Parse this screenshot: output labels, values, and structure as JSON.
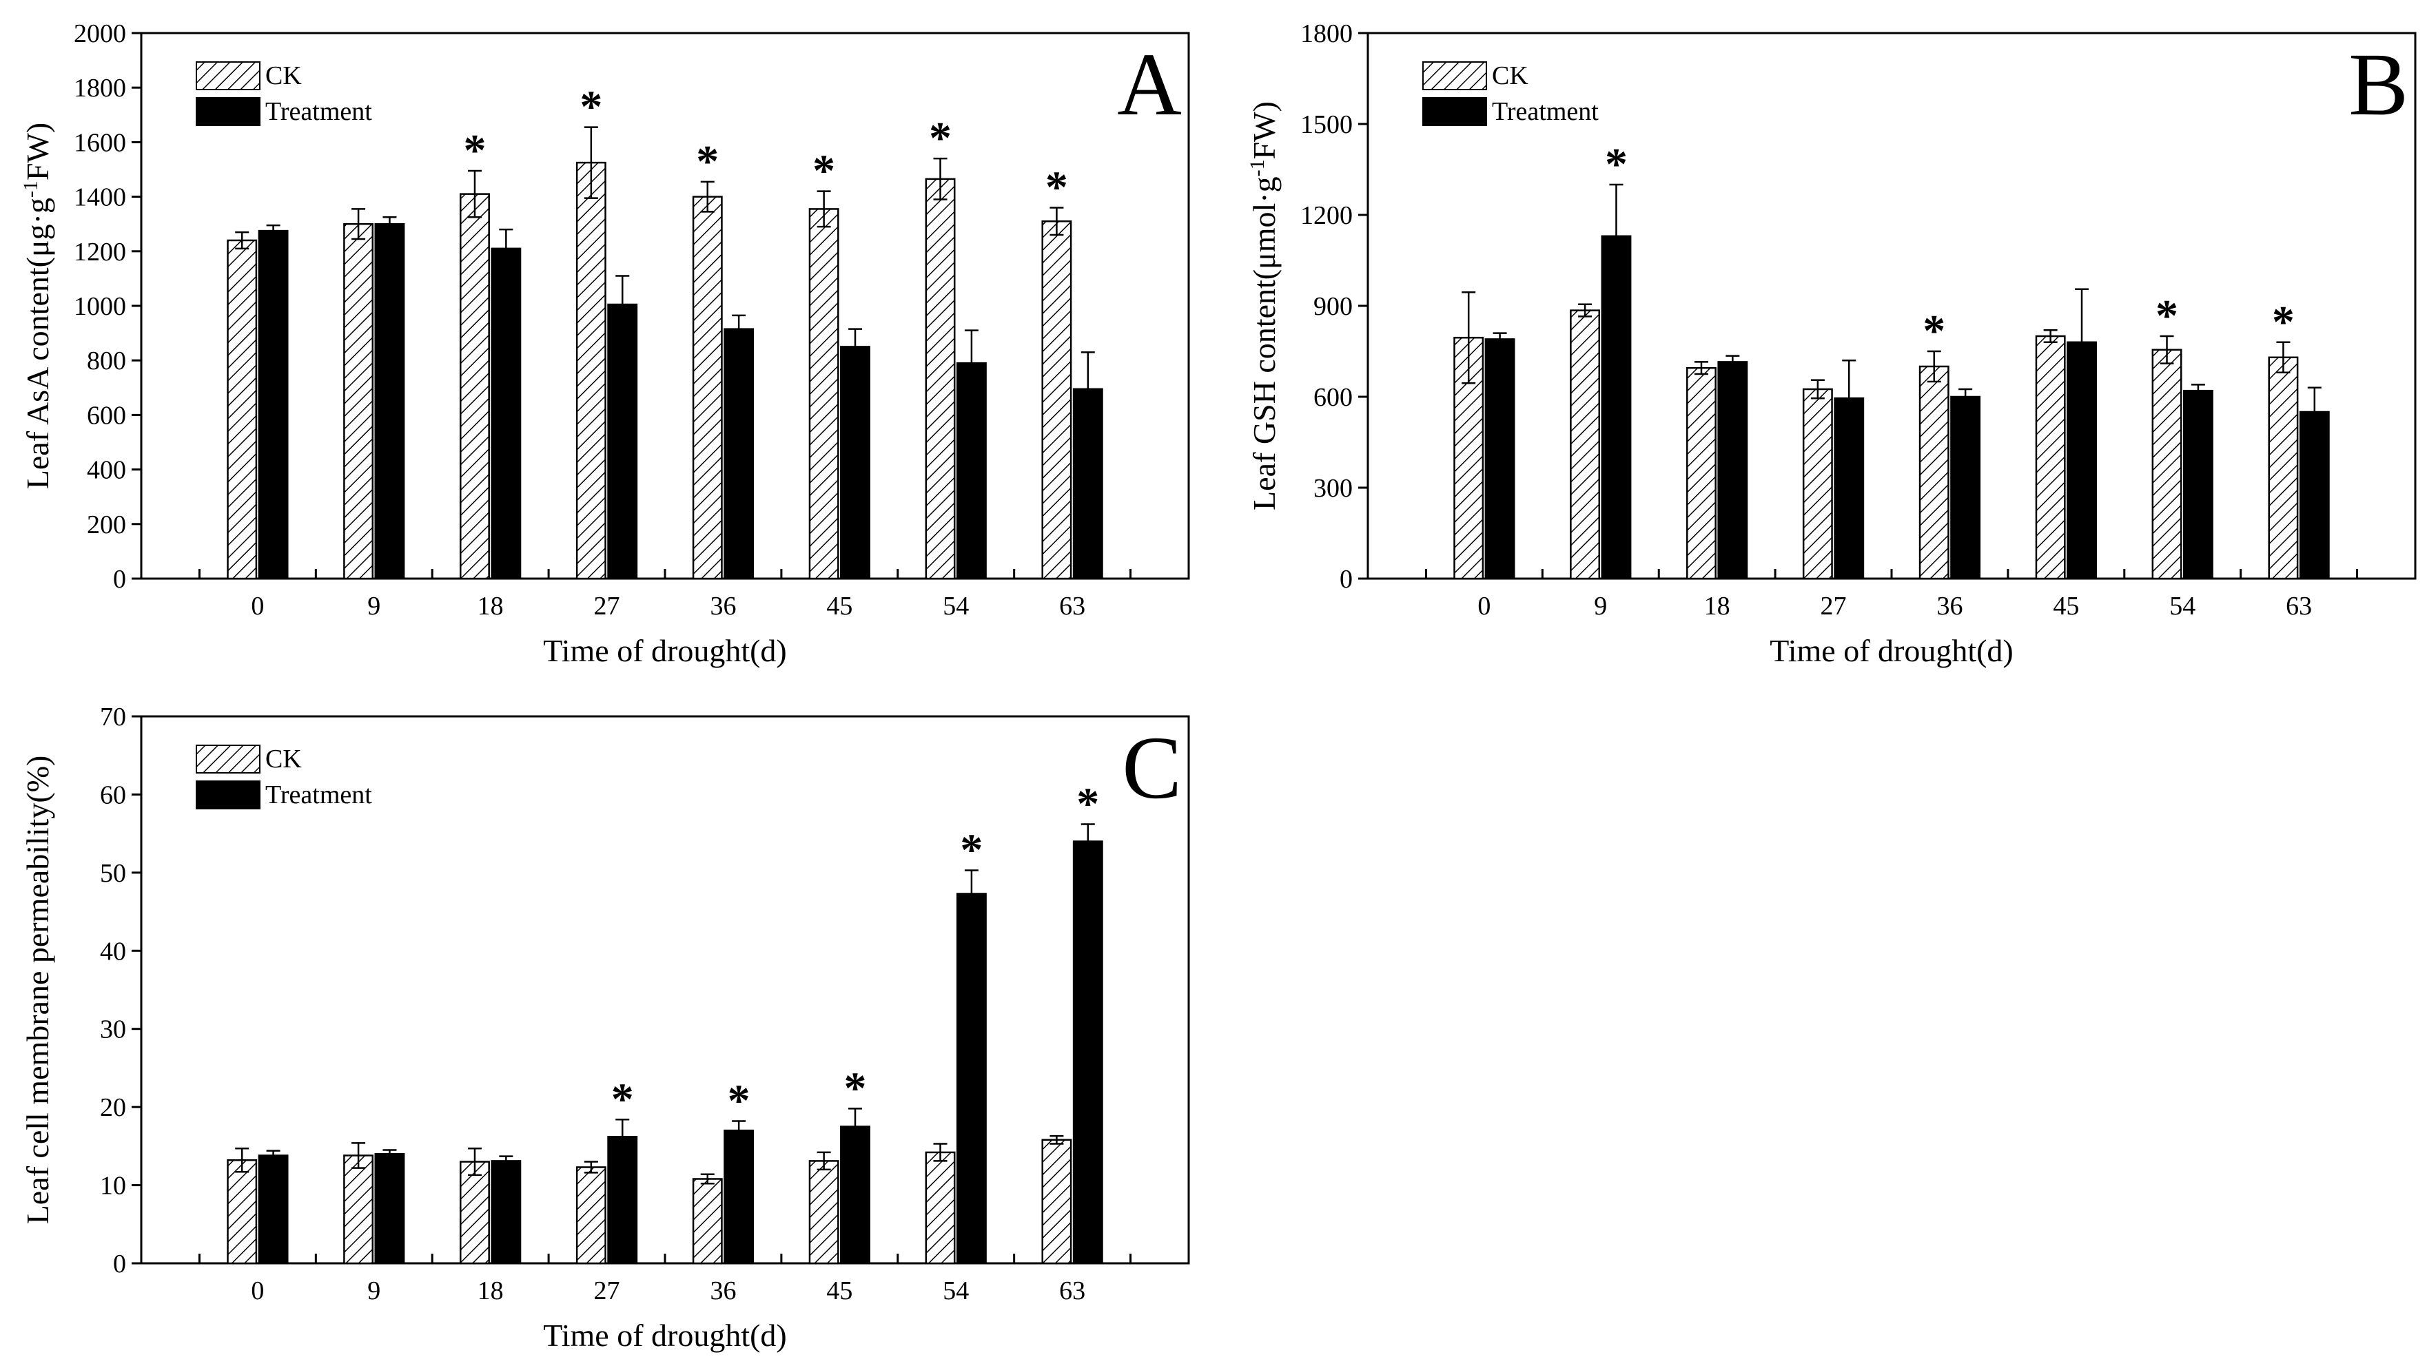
{
  "chart_data": [
    {
      "panel": "A",
      "type": "bar",
      "categories": [
        "0",
        "9",
        "18",
        "27",
        "36",
        "45",
        "54",
        "63"
      ],
      "xlabel": "Time of drought(d)",
      "ylabel_parts": {
        "pre": "Leaf AsA content(μg·g",
        "sup": "-1",
        "post": "FW)"
      },
      "ylim": [
        0,
        2000
      ],
      "yticks": [
        "0",
        "200",
        "400",
        "600",
        "800",
        "1000",
        "1200",
        "1400",
        "1600",
        "1800",
        "2000"
      ],
      "legend": [
        "CK",
        "Treatment"
      ],
      "legend_position": "top-left",
      "series": [
        {
          "name": "CK",
          "values": [
            1240,
            1300,
            1410,
            1525,
            1400,
            1355,
            1465,
            1310
          ],
          "errors": [
            30,
            55,
            85,
            130,
            55,
            65,
            75,
            50
          ]
        },
        {
          "name": "Treatment",
          "values": [
            1275,
            1300,
            1210,
            1005,
            915,
            850,
            790,
            695
          ],
          "errors": [
            20,
            25,
            70,
            105,
            50,
            65,
            120,
            135
          ]
        }
      ],
      "significance": [
        "",
        "",
        "*",
        "*",
        "*",
        "*",
        "*",
        "*"
      ],
      "significance_on": "CK",
      "grid": false
    },
    {
      "panel": "B",
      "type": "bar",
      "categories": [
        "0",
        "9",
        "18",
        "27",
        "36",
        "45",
        "54",
        "63"
      ],
      "xlabel": "Time of drought(d)",
      "ylabel_parts": {
        "pre": "Leaf GSH content(μmol·g",
        "sup": "-1",
        "post": "FW)"
      },
      "ylim": [
        0,
        1800
      ],
      "yticks": [
        "0",
        "300",
        "600",
        "900",
        "1200",
        "1500",
        "1800"
      ],
      "legend": [
        "CK",
        "Treatment"
      ],
      "legend_position": "top-left",
      "series": [
        {
          "name": "CK",
          "values": [
            795,
            885,
            695,
            625,
            700,
            800,
            755,
            730
          ],
          "errors": [
            150,
            20,
            20,
            30,
            50,
            20,
            45,
            50
          ]
        },
        {
          "name": "Treatment",
          "values": [
            790,
            1130,
            715,
            595,
            600,
            780,
            620,
            550
          ],
          "errors": [
            20,
            170,
            20,
            125,
            25,
            175,
            20,
            80
          ]
        }
      ],
      "significance": [
        "",
        "*",
        "",
        "",
        "*",
        "",
        "*",
        "*"
      ],
      "significance_on": "mixed",
      "significance_series": [
        "",
        "Treatment",
        "",
        "",
        "CK",
        "",
        "CK",
        "CK"
      ],
      "grid": false
    },
    {
      "panel": "C",
      "type": "bar",
      "categories": [
        "0",
        "9",
        "18",
        "27",
        "36",
        "45",
        "54",
        "63"
      ],
      "xlabel": "Time of drought(d)",
      "ylabel_parts": {
        "pre": "Leaf cell membrane permeability(%)",
        "sup": "",
        "post": ""
      },
      "ylim": [
        0,
        70
      ],
      "yticks": [
        "0",
        "10",
        "20",
        "30",
        "40",
        "50",
        "60",
        "70"
      ],
      "legend": [
        "CK",
        "Treatment"
      ],
      "legend_position": "top-left",
      "series": [
        {
          "name": "CK",
          "values": [
            13.2,
            13.8,
            13.0,
            12.3,
            10.8,
            13.1,
            14.2,
            15.8
          ],
          "errors": [
            1.5,
            1.6,
            1.7,
            0.7,
            0.6,
            1.1,
            1.1,
            0.5
          ]
        },
        {
          "name": "Treatment",
          "values": [
            13.8,
            14.0,
            13.1,
            16.2,
            17.0,
            17.5,
            47.3,
            54.0
          ],
          "errors": [
            0.6,
            0.5,
            0.6,
            2.2,
            1.2,
            2.3,
            3.0,
            2.2
          ]
        }
      ],
      "significance": [
        "",
        "",
        "",
        "*",
        "*",
        "*",
        "*",
        "*"
      ],
      "significance_on": "Treatment",
      "grid": false
    }
  ]
}
